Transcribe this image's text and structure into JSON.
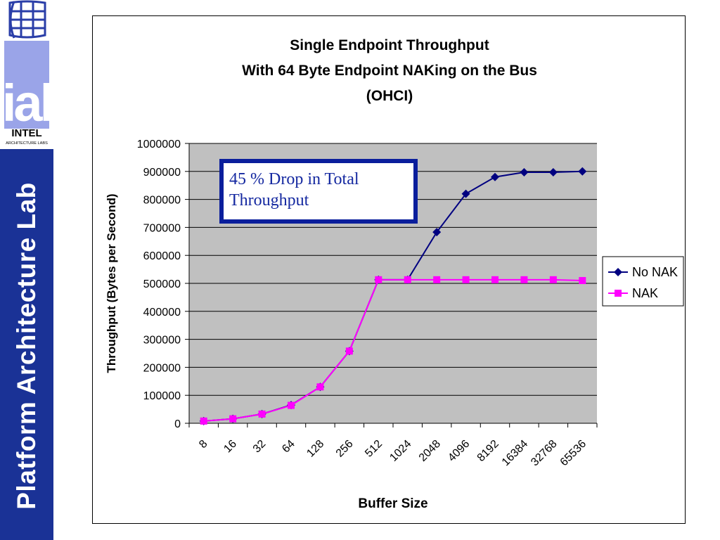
{
  "sidebar": {
    "title": "Platform Architecture Lab",
    "logo_letters": "ial",
    "logo_brand": "INTEL",
    "logo_sub": "ARCHITECTURE LABS",
    "color": "#1a3296"
  },
  "callout": {
    "text": "45 % Drop in Total Throughput",
    "border_color": "#0a1e9c",
    "text_color": "#1428a0"
  },
  "chart_data": {
    "type": "line",
    "title_lines": [
      "Single Endpoint Throughput",
      "With 64 Byte Endpoint NAKing on the Bus",
      "(OHCI)"
    ],
    "xlabel": "Buffer Size",
    "ylabel": "Throughput (Bytes per Second)",
    "categories": [
      "8",
      "16",
      "32",
      "64",
      "128",
      "256",
      "512",
      "1024",
      "2048",
      "4096",
      "8192",
      "16384",
      "32768",
      "65536"
    ],
    "ylim": [
      0,
      1000000
    ],
    "yticks": [
      0,
      100000,
      200000,
      300000,
      400000,
      500000,
      600000,
      700000,
      800000,
      900000,
      1000000
    ],
    "ytick_labels": [
      "0",
      "100000",
      "200000",
      "300000",
      "400000",
      "500000",
      "600000",
      "700000",
      "800000",
      "900000",
      "1000000"
    ],
    "grid": true,
    "plot_background": "#c0c0c0",
    "legend_position": "right",
    "series": [
      {
        "name": "No NAK",
        "color": "#000080",
        "marker": "diamond",
        "values": [
          8000,
          16000,
          33000,
          65000,
          130000,
          258000,
          513000,
          513000,
          683000,
          820000,
          880000,
          897000,
          897000,
          900000
        ]
      },
      {
        "name": "NAK",
        "color": "#ff00ff",
        "marker": "square",
        "values": [
          8000,
          16000,
          33000,
          64000,
          130000,
          258000,
          513000,
          513000,
          513000,
          513000,
          513000,
          513000,
          513000,
          510000
        ]
      }
    ]
  }
}
